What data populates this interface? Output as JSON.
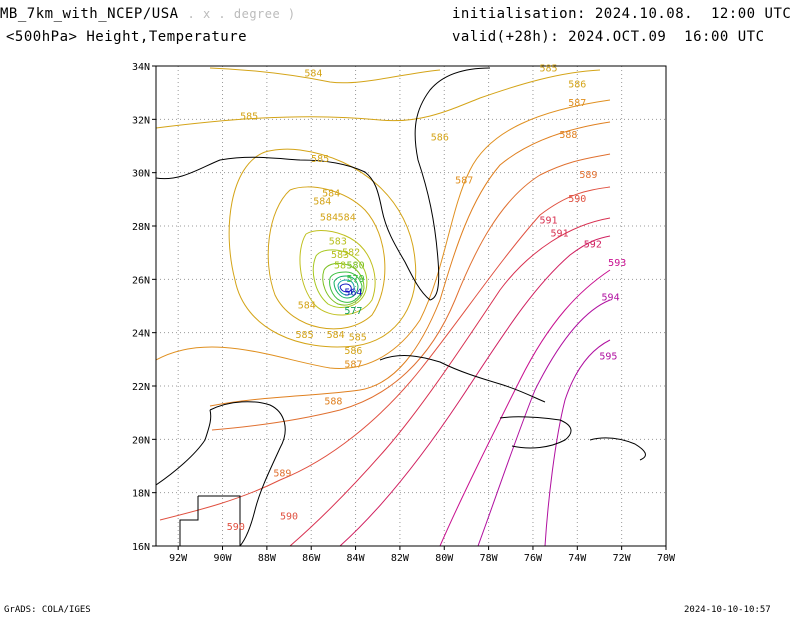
{
  "header": {
    "model": "MB_7km_with_NCEP/USA",
    "units": ". x . degree )",
    "level": "<500hPa> Height,Temperature",
    "init_label": "initialisation:",
    "init_value": "2024.10.08.  12:00 UTC",
    "valid_label": "valid(+28h):",
    "valid_value": "2024.OCT.09  16:00 UTC"
  },
  "footer": {
    "left": "GrADS: COLA/IGES",
    "right": "2024-10-10-10:57"
  },
  "axes": {
    "lon_ticks": [
      "92W",
      "90W",
      "88W",
      "86W",
      "84W",
      "82W",
      "80W",
      "78W",
      "76W",
      "74W",
      "72W",
      "70W"
    ],
    "lat_ticks": [
      "34N",
      "32N",
      "30N",
      "28N",
      "26N",
      "24N",
      "22N",
      "20N",
      "18N",
      "16N"
    ],
    "lon_range": [
      -93,
      -70
    ],
    "lat_range": [
      16,
      34
    ]
  },
  "contour_labels": [
    {
      "text": "584",
      "lon": -85.9,
      "lat": 33.6,
      "color": "#d4a418"
    },
    {
      "text": "585",
      "lon": -88.8,
      "lat": 32.0,
      "color": "#d4a418"
    },
    {
      "text": "585",
      "lon": -85.6,
      "lat": 30.4,
      "color": "#d4a418"
    },
    {
      "text": "584",
      "lon": -85.1,
      "lat": 29.1,
      "color": "#d4a418"
    },
    {
      "text": "584",
      "lon": -85.5,
      "lat": 28.8,
      "color": "#d4a418"
    },
    {
      "text": "584",
      "lon": -85.2,
      "lat": 28.2,
      "color": "#d4a418"
    },
    {
      "text": "584",
      "lon": -84.4,
      "lat": 28.2,
      "color": "#d4a418"
    },
    {
      "text": "583",
      "lon": -84.8,
      "lat": 27.3,
      "color": "#b8c020"
    },
    {
      "text": "582",
      "lon": -84.2,
      "lat": 26.9,
      "color": "#b8c020"
    },
    {
      "text": "583",
      "lon": -84.7,
      "lat": 26.8,
      "color": "#b8c020"
    },
    {
      "text": "58",
      "lon": -84.7,
      "lat": 26.4,
      "color": "#a8c820"
    },
    {
      "text": "580",
      "lon": -84.0,
      "lat": 26.4,
      "color": "#7cc020"
    },
    {
      "text": "579",
      "lon": -84.0,
      "lat": 25.9,
      "color": "#3cc040"
    },
    {
      "text": "564",
      "lon": -84.1,
      "lat": 25.4,
      "color": "#1010c0"
    },
    {
      "text": "577",
      "lon": -84.1,
      "lat": 24.7,
      "color": "#10a050"
    },
    {
      "text": "584",
      "lon": -86.2,
      "lat": 24.9,
      "color": "#d4a418"
    },
    {
      "text": "585",
      "lon": -86.3,
      "lat": 23.8,
      "color": "#d4a418"
    },
    {
      "text": "584",
      "lon": -84.9,
      "lat": 23.8,
      "color": "#d4a418"
    },
    {
      "text": "585",
      "lon": -83.9,
      "lat": 23.7,
      "color": "#d4a418"
    },
    {
      "text": "586",
      "lon": -84.1,
      "lat": 23.2,
      "color": "#d4a418"
    },
    {
      "text": "587",
      "lon": -84.1,
      "lat": 22.7,
      "color": "#e09020"
    },
    {
      "text": "588",
      "lon": -85.0,
      "lat": 21.3,
      "color": "#e08020"
    },
    {
      "text": "589",
      "lon": -87.3,
      "lat": 18.6,
      "color": "#e07030"
    },
    {
      "text": "590",
      "lon": -87.0,
      "lat": 17.0,
      "color": "#e05040"
    },
    {
      "text": "590",
      "lon": -89.4,
      "lat": 16.6,
      "color": "#e05040"
    },
    {
      "text": "586",
      "lon": -80.2,
      "lat": 31.2,
      "color": "#d4a418"
    },
    {
      "text": "587",
      "lon": -79.1,
      "lat": 29.6,
      "color": "#e09020"
    },
    {
      "text": "585",
      "lon": -75.3,
      "lat": 33.8,
      "color": "#d4a418"
    },
    {
      "text": "586",
      "lon": -74.0,
      "lat": 33.2,
      "color": "#d4a418"
    },
    {
      "text": "587",
      "lon": -74.0,
      "lat": 32.5,
      "color": "#e09020"
    },
    {
      "text": "588",
      "lon": -74.4,
      "lat": 31.3,
      "color": "#e08020"
    },
    {
      "text": "589",
      "lon": -73.5,
      "lat": 29.8,
      "color": "#e07030"
    },
    {
      "text": "590",
      "lon": -74.0,
      "lat": 28.9,
      "color": "#e05040"
    },
    {
      "text": "591",
      "lon": -75.3,
      "lat": 28.1,
      "color": "#d83050"
    },
    {
      "text": "591",
      "lon": -74.8,
      "lat": 27.6,
      "color": "#d83050"
    },
    {
      "text": "592",
      "lon": -73.3,
      "lat": 27.2,
      "color": "#d02060"
    },
    {
      "text": "593",
      "lon": -72.2,
      "lat": 26.5,
      "color": "#c81090"
    },
    {
      "text": "594",
      "lon": -72.5,
      "lat": 25.2,
      "color": "#b010a0"
    },
    {
      "text": "595",
      "lon": -72.6,
      "lat": 23.0,
      "color": "#b010a0"
    }
  ]
}
